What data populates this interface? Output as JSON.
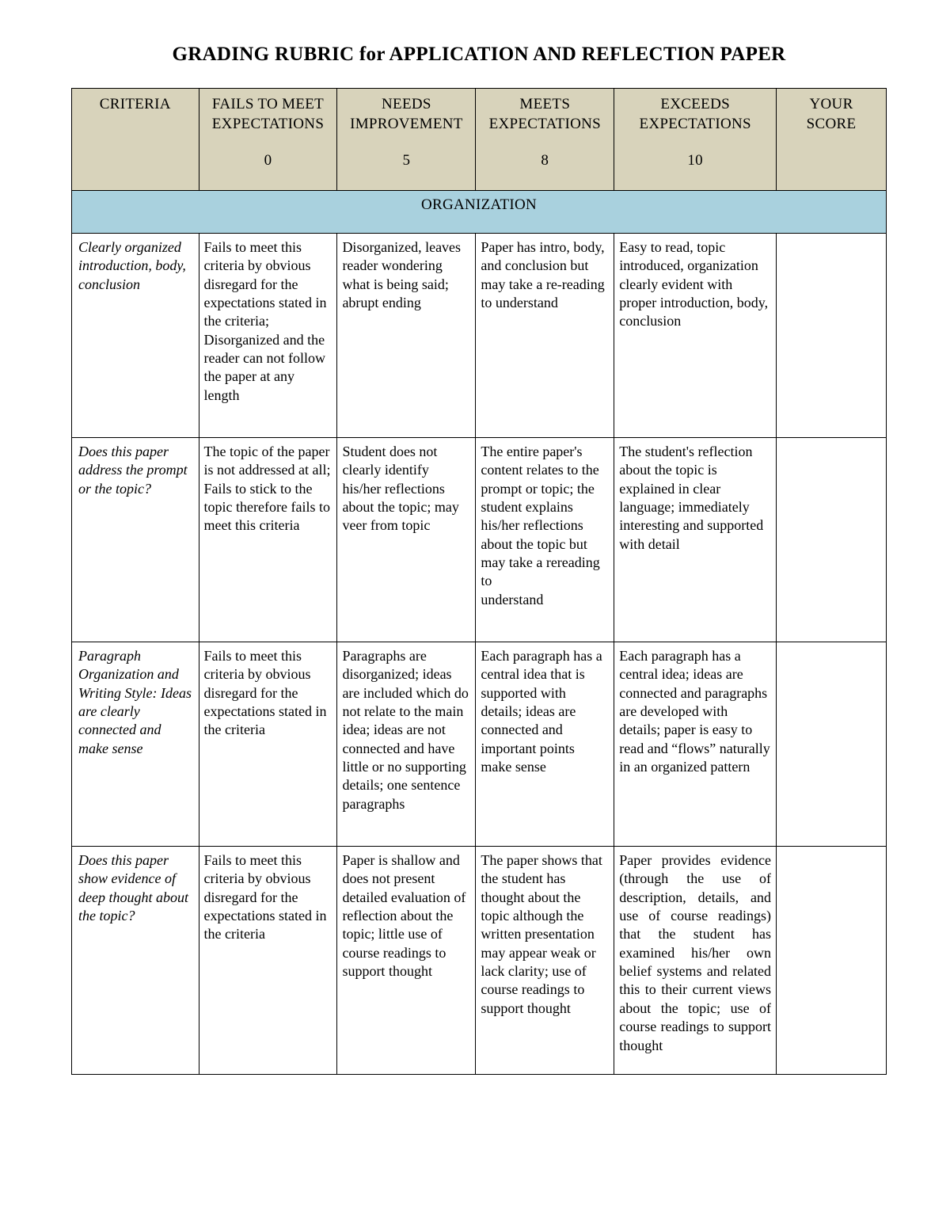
{
  "document_title": "GRADING RUBRIC for APPLICATION AND REFLECTION PAPER",
  "colors": {
    "header_bg": "#d8d3bb",
    "section_bg": "#a9d1de",
    "border": "#000000",
    "page_bg": "#ffffff",
    "text": "#000000"
  },
  "columns": [
    {
      "line1": "CRITERIA",
      "line2": "",
      "score": ""
    },
    {
      "line1": "FAILS TO MEET",
      "line2": "EXPECTATIONS",
      "score": "0"
    },
    {
      "line1": "NEEDS",
      "line2": "IMPROVEMENT",
      "score": "5"
    },
    {
      "line1": "MEETS",
      "line2": "EXPECTATIONS",
      "score": "8"
    },
    {
      "line1": "EXCEEDS",
      "line2": "EXPECTATIONS",
      "score": "10"
    },
    {
      "line1": "YOUR",
      "line2": "SCORE",
      "score": ""
    }
  ],
  "section_label": "ORGANIZATION",
  "rows": [
    {
      "criteria": "Clearly organized introduction, body, conclusion",
      "fails": "Fails to meet this criteria by obvious disregard for the expectations stated in the criteria; Disorganized and the reader can not follow the paper at any length",
      "needs": "Disorganized, leaves reader wondering what is being said; abrupt ending",
      "meets": "Paper has intro, body, and conclusion but may take a re-reading to understand",
      "exceeds": "Easy to read, topic introduced, organization clearly evident with proper introduction, body, conclusion",
      "your_score": ""
    },
    {
      "criteria": "Does this paper address the prompt or the topic?",
      "fails": "The topic of the paper is not addressed at all; Fails to stick to the topic therefore fails to meet this criteria",
      "needs": "Student does not clearly identify his/her reflections about the topic; may veer from topic",
      "meets": "The entire paper's content relates to the prompt or topic; the student explains his/her reflections about the topic but may take a rereading to\nunderstand",
      "exceeds": "The student's reflection about the topic is explained in clear language; immediately interesting and supported with detail",
      "your_score": ""
    },
    {
      "criteria": "Paragraph Organization and Writing Style: Ideas are clearly connected and make sense",
      "fails": "Fails to meet this criteria by obvious disregard for the expectations stated in the criteria",
      "needs": "Paragraphs are disorganized; ideas are included which do not relate to the main idea; ideas are not connected and have little or no supporting details; one sentence paragraphs",
      "meets": "Each paragraph has a central idea that is supported with details; ideas are connected and important points make sense",
      "exceeds": "Each paragraph has a central idea; ideas are connected and paragraphs are developed with details; paper is easy to read and “flows” naturally in an organized pattern",
      "your_score": ""
    },
    {
      "criteria": "Does this paper show evidence of deep thought about the topic?",
      "fails": "Fails to meet this criteria by obvious disregard for the expectations stated in the criteria",
      "needs": "Paper is shallow and does not present detailed evaluation of reflection about the topic; little use of course readings to support thought",
      "meets": "The paper shows that the student has thought about the topic although the written presentation may appear weak or lack clarity; use of course readings to support thought",
      "exceeds": "Paper provides evidence (through the use of description, details, and use of course readings) that the student has examined his/her own belief systems and related this to their current views about the topic; use of course readings to support thought",
      "exceeds_justify": true,
      "your_score": ""
    }
  ]
}
